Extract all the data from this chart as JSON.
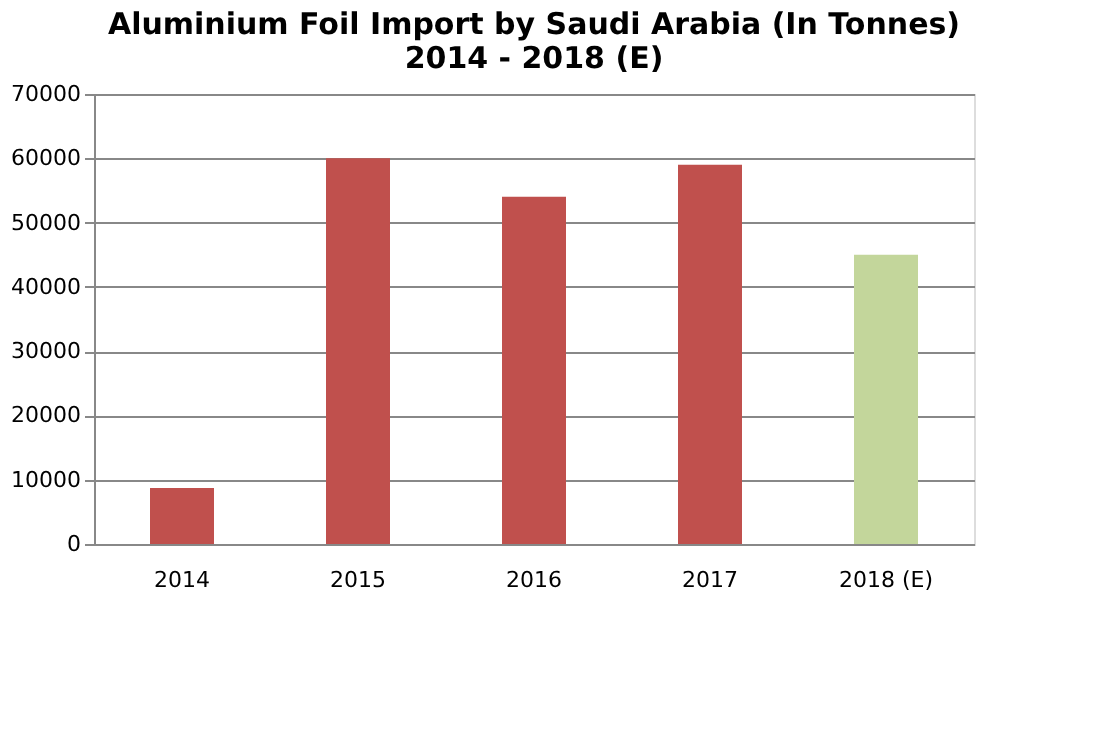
{
  "chart_data": {
    "type": "bar",
    "title": [
      "Aluminium Foil  Import by Saudi Arabia (In Tonnes)",
      "2014 - 2018 (E)"
    ],
    "categories": [
      "2014",
      "2015",
      "2016",
      "2017",
      "2018 (E)"
    ],
    "values": [
      8700,
      60000,
      54000,
      59000,
      45000
    ],
    "colors": [
      "#c0504d",
      "#c0504d",
      "#c0504d",
      "#c0504d",
      "#c3d69b"
    ],
    "ylim": [
      0,
      70000
    ],
    "yticks": [
      0,
      10000,
      20000,
      30000,
      40000,
      50000,
      60000,
      70000
    ],
    "grid": "y"
  }
}
